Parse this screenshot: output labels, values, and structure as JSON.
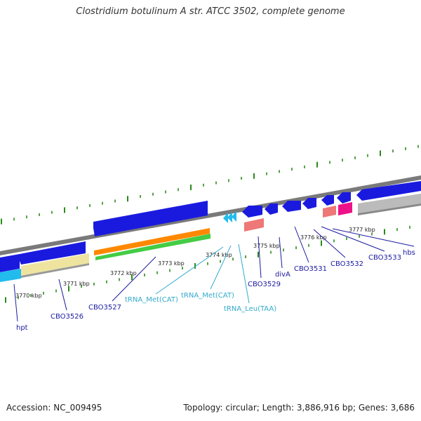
{
  "title": "Clostridium botulinum A str. ATCC 3502, complete genome",
  "footer": {
    "accession": "Accession: NC_009495",
    "summary": "Topology: circular; Length: 3,886,916 bp; Genes: 3,686"
  },
  "colors": {
    "backbone": "#7a7a7a",
    "cds": "#1a1adf",
    "gene_tick": "#2a8a1a",
    "orange": "#ff8800",
    "green": "#44cc44",
    "khaki": "#eee4a0",
    "cyan": "#22bbee",
    "salmon": "#ee7777",
    "magenta": "#ee1188",
    "gray_feature": "#bbbbbb",
    "label_blue": "#1a1a9e",
    "label_cyan": "#33aacc"
  },
  "ticks": [
    {
      "label": "3770 kbp"
    },
    {
      "label": "3771 kbp"
    },
    {
      "label": "3772 kbp"
    },
    {
      "label": "3773 kbp"
    },
    {
      "label": "3774 kbp"
    },
    {
      "label": "3775 kbp"
    },
    {
      "label": "3776 kbp"
    },
    {
      "label": "3777 kbp"
    }
  ],
  "gene_labels": [
    {
      "text": "hpt",
      "kind": "gene"
    },
    {
      "text": "CBO3526",
      "kind": "gene"
    },
    {
      "text": "CBO3527",
      "kind": "gene"
    },
    {
      "text": "tRNA_Met(CAT)",
      "kind": "rna"
    },
    {
      "text": "tRNA_Met(CAT)",
      "kind": "rna"
    },
    {
      "text": "tRNA_Leu(TAA)",
      "kind": "rna"
    },
    {
      "text": "CBO3529",
      "kind": "gene"
    },
    {
      "text": "divA",
      "kind": "gene"
    },
    {
      "text": "CBO3531",
      "kind": "gene"
    },
    {
      "text": "CBO3532",
      "kind": "gene"
    },
    {
      "text": "CBO3533",
      "kind": "gene"
    },
    {
      "text": "hbs",
      "kind": "gene"
    }
  ]
}
